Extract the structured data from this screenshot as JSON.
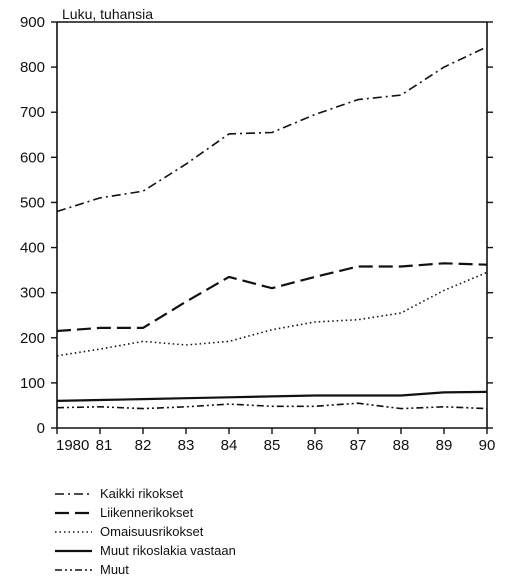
{
  "chart_data": {
    "type": "line",
    "title": "",
    "xlabel": "",
    "ylabel": "Luku, tuhansia",
    "x": [
      1980,
      1981,
      1982,
      1983,
      1984,
      1985,
      1986,
      1987,
      1988,
      1989,
      1990
    ],
    "x_tick_labels": [
      "1980",
      "81",
      "82",
      "83",
      "84",
      "85",
      "86",
      "87",
      "88",
      "89",
      "90"
    ],
    "y_ticks": [
      0,
      100,
      200,
      300,
      400,
      500,
      600,
      700,
      800,
      900
    ],
    "xlim": [
      1980,
      1990
    ],
    "ylim": [
      0,
      900
    ],
    "grid": false,
    "legend_position": "bottom-left",
    "series": [
      {
        "name": "Kaikki rikokset",
        "style": "dash-dot",
        "values": [
          480,
          510,
          525,
          585,
          652,
          655,
          695,
          728,
          738,
          800,
          845
        ]
      },
      {
        "name": "Liikennerikokset",
        "style": "dashed",
        "values": [
          215,
          222,
          222,
          280,
          335,
          310,
          335,
          358,
          358,
          365,
          362
        ]
      },
      {
        "name": "Omaisuusrikokset",
        "style": "dotted",
        "values": [
          160,
          175,
          192,
          184,
          192,
          218,
          235,
          240,
          255,
          305,
          345
        ]
      },
      {
        "name": "Muut rikoslakia vastaan",
        "style": "solid",
        "values": [
          60,
          62,
          64,
          66,
          68,
          70,
          72,
          72,
          72,
          79,
          80
        ]
      },
      {
        "name": "Muut",
        "style": "dash-dot-dot",
        "values": [
          45,
          47,
          43,
          47,
          53,
          48,
          48,
          55,
          43,
          47,
          43
        ]
      }
    ]
  }
}
